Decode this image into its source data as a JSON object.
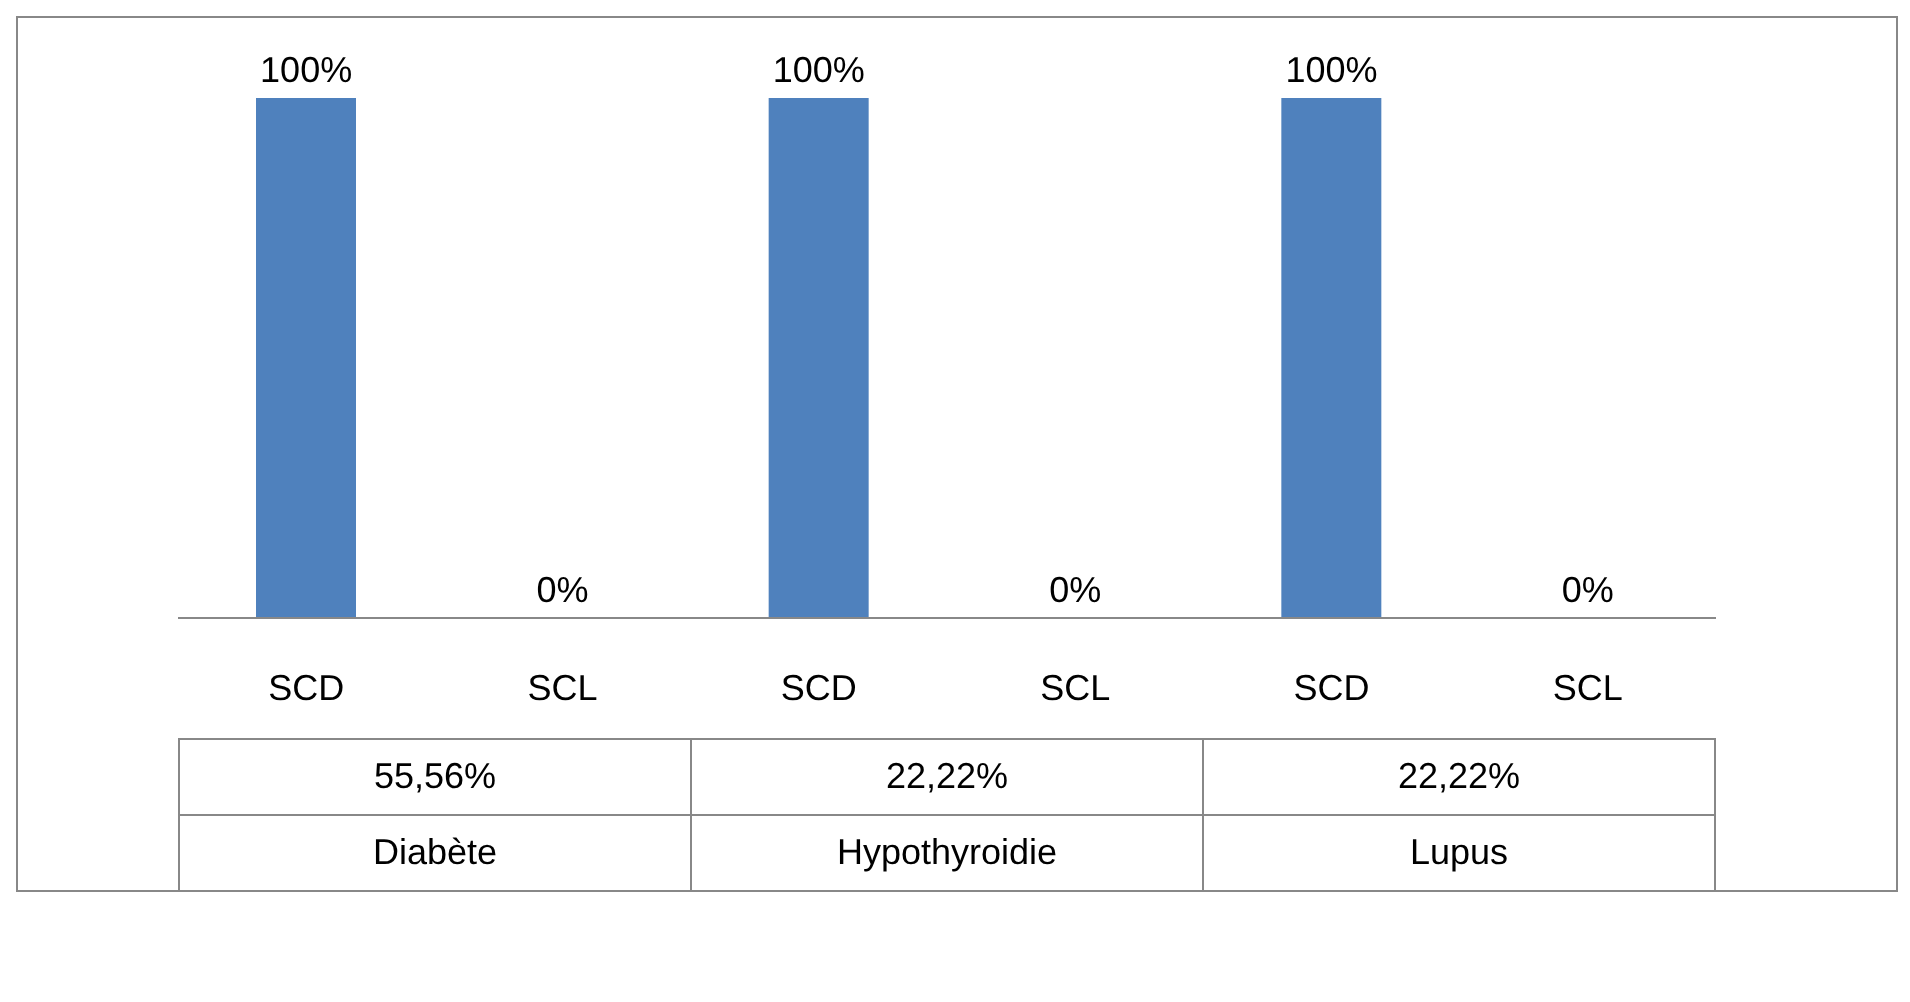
{
  "chart_data": {
    "type": "bar",
    "categories": [
      "SCD",
      "SCL",
      "SCD",
      "SCL",
      "SCD",
      "SCL"
    ],
    "values": [
      100,
      0,
      100,
      0,
      100,
      0
    ],
    "value_labels": [
      "100%",
      "0%",
      "100%",
      "0%",
      "100%",
      "0%"
    ],
    "color": "#4f81bd",
    "ylim": [
      0,
      100
    ],
    "annotations": [
      "55,56%",
      "Diabète",
      "22,22%",
      "Hypothyroidie",
      "22,22%",
      "Lupus"
    ]
  }
}
